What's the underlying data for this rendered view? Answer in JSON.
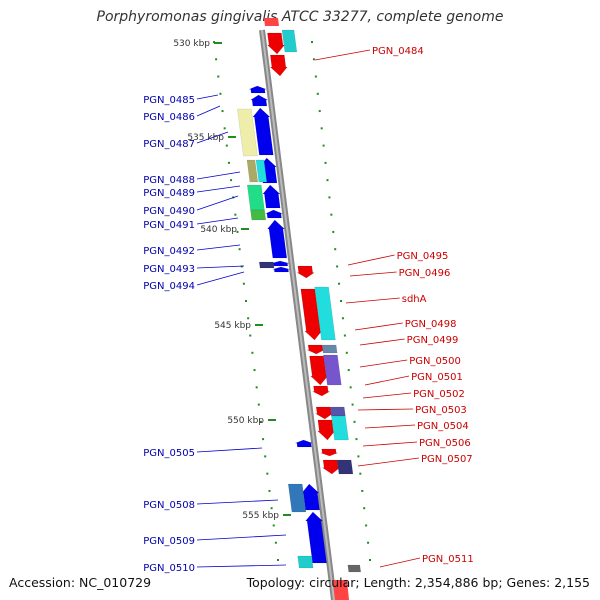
{
  "title": "Porphyromonas gingivalis ATCC 33277, complete genome",
  "footer": {
    "accession": "Accession: NC_010729",
    "genome_info": "Topology: circular; Length: 2,354,886 bp; Genes: 2,155"
  },
  "colors": {
    "plus_strand": "#0000ee",
    "minus_strand": "#ee0000",
    "backbone": "#888888",
    "tick": "#228b22",
    "left_label": "#0000aa",
    "right_label": "#cc0000"
  },
  "ticks": [
    "530 kbp",
    "535 kbp",
    "540 kbp",
    "545 kbp",
    "550 kbp",
    "555 kbp"
  ],
  "left_genes": [
    "PGN_0485",
    "PGN_0486",
    "PGN_0487",
    "PGN_0488",
    "PGN_0489",
    "PGN_0490",
    "PGN_0491",
    "PGN_0492",
    "PGN_0493",
    "PGN_0494",
    "PGN_0505",
    "PGN_0508",
    "PGN_0509",
    "PGN_0510"
  ],
  "right_genes": [
    "PGN_0484",
    "PGN_0495",
    "PGN_0496",
    "sdhA",
    "PGN_0498",
    "PGN_0499",
    "PGN_0500",
    "PGN_0501",
    "PGN_0502",
    "PGN_0503",
    "PGN_0504",
    "PGN_0506",
    "PGN_0507",
    "PGN_0511"
  ]
}
